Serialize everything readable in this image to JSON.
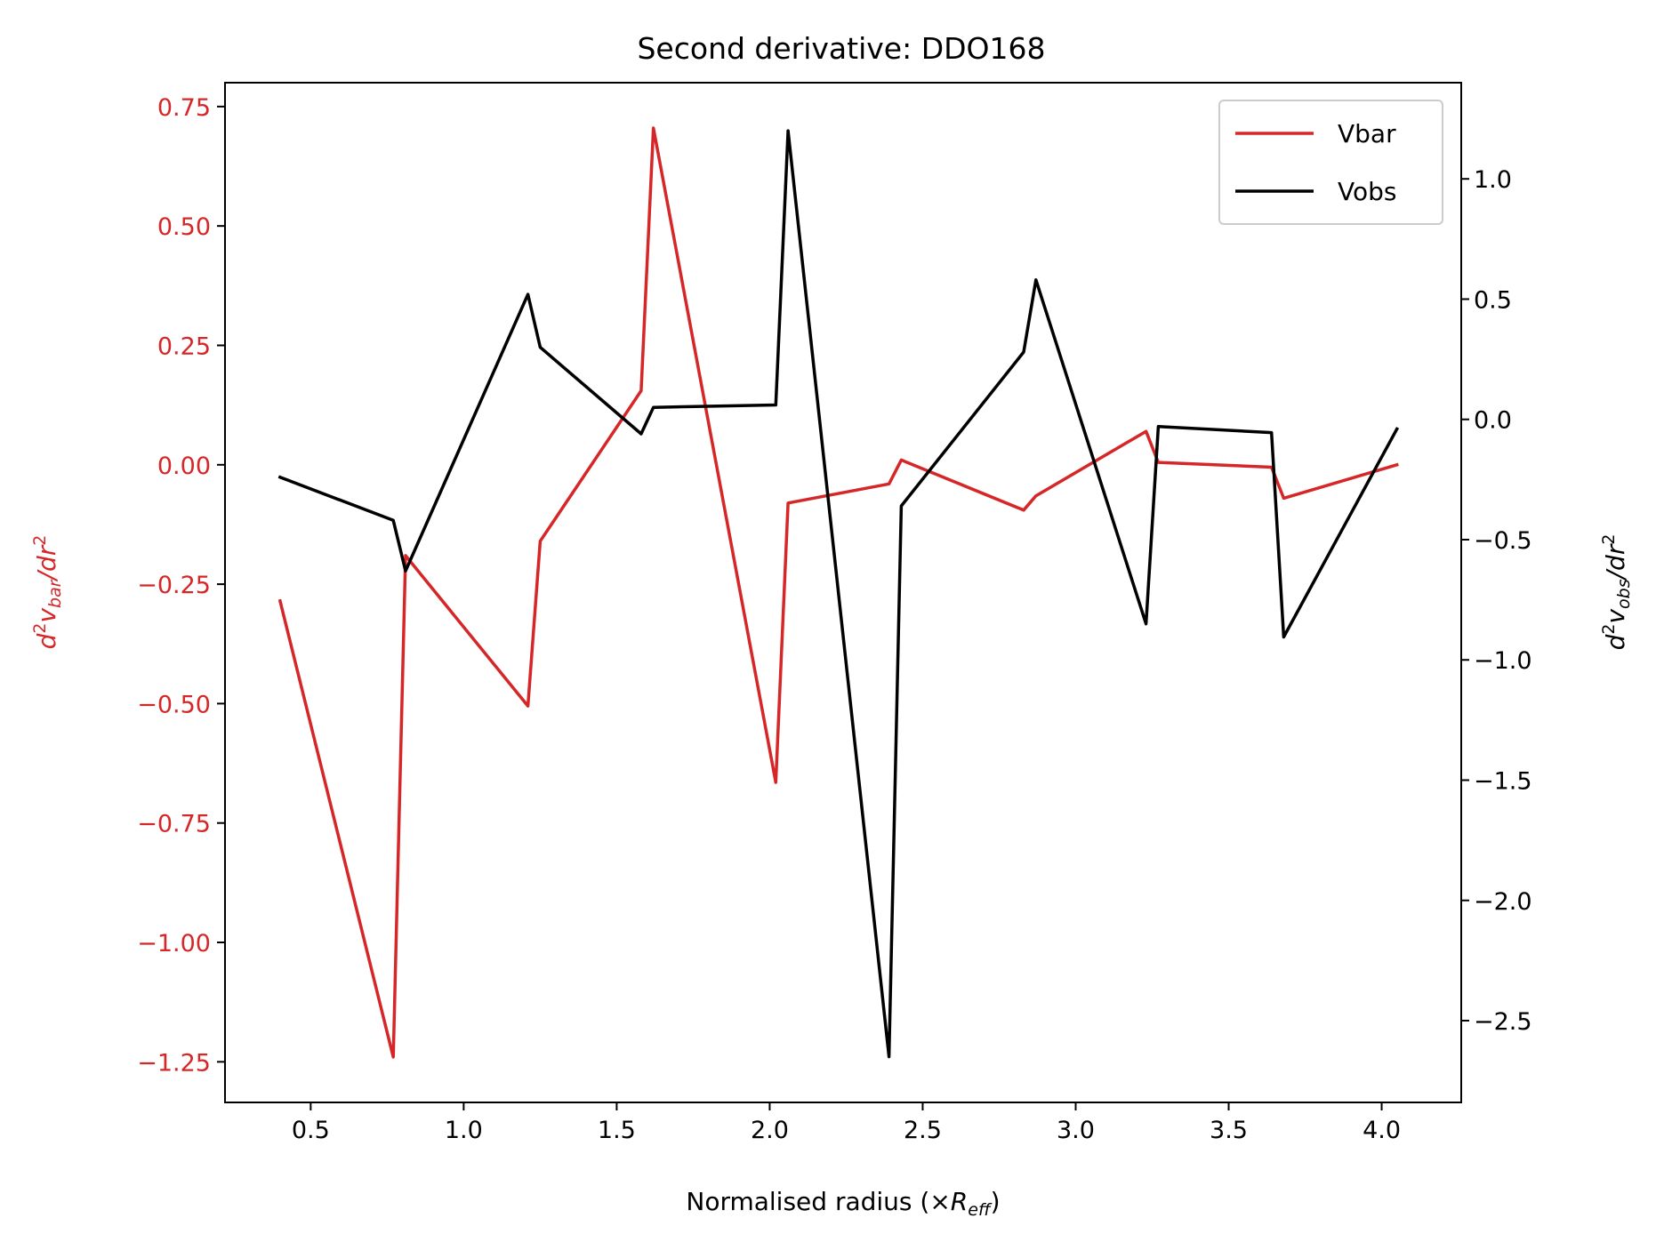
{
  "chart_data": {
    "type": "line",
    "title": "Second derivative: DDO168",
    "xlabel": {
      "text": "Normalised radius (×",
      "var": "R",
      "sub": "eff",
      "close": ")"
    },
    "ylabel_left": {
      "parts": [
        {
          "t": "d",
          "style": "italic"
        },
        {
          "t": "2",
          "style": "sup"
        },
        {
          "t": "v",
          "style": "italic"
        },
        {
          "t": "bar",
          "style": "sub"
        },
        {
          "t": "/dr",
          "style": "italic"
        },
        {
          "t": "2",
          "style": "sup"
        }
      ],
      "color": "#d62728"
    },
    "ylabel_right": {
      "parts": [
        {
          "t": "d",
          "style": "italic"
        },
        {
          "t": "2",
          "style": "sup"
        },
        {
          "t": "v",
          "style": "italic"
        },
        {
          "t": "obs",
          "style": "sub"
        },
        {
          "t": "/dr",
          "style": "italic"
        },
        {
          "t": "2",
          "style": "sup"
        }
      ],
      "color": "#000000"
    },
    "xlim": [
      0.22,
      4.26
    ],
    "ylim_left": [
      -1.335,
      0.8
    ],
    "ylim_right": [
      -2.84,
      1.4
    ],
    "xticks": [
      {
        "v": 0.5,
        "label": "0.5"
      },
      {
        "v": 1.0,
        "label": "1.0"
      },
      {
        "v": 1.5,
        "label": "1.5"
      },
      {
        "v": 2.0,
        "label": "2.0"
      },
      {
        "v": 2.5,
        "label": "2.5"
      },
      {
        "v": 3.0,
        "label": "3.0"
      },
      {
        "v": 3.5,
        "label": "3.5"
      },
      {
        "v": 4.0,
        "label": "4.0"
      }
    ],
    "yticks_left": [
      {
        "v": 0.75,
        "label": "0.75"
      },
      {
        "v": 0.5,
        "label": "0.50"
      },
      {
        "v": 0.25,
        "label": "0.25"
      },
      {
        "v": 0.0,
        "label": "0.00"
      },
      {
        "v": -0.25,
        "label": "−0.25"
      },
      {
        "v": -0.5,
        "label": "−0.50"
      },
      {
        "v": -0.75,
        "label": "−0.75"
      },
      {
        "v": -1.0,
        "label": "−1.00"
      },
      {
        "v": -1.25,
        "label": "−1.25"
      }
    ],
    "yticks_right": [
      {
        "v": 1.0,
        "label": "1.0"
      },
      {
        "v": 0.5,
        "label": "0.5"
      },
      {
        "v": 0.0,
        "label": "0.0"
      },
      {
        "v": -0.5,
        "label": "−0.5"
      },
      {
        "v": -1.0,
        "label": "−1.0"
      },
      {
        "v": -1.5,
        "label": "−1.5"
      },
      {
        "v": -2.0,
        "label": "−2.0"
      },
      {
        "v": -2.5,
        "label": "−2.5"
      }
    ],
    "grid": false,
    "legend": {
      "placement": "top-right",
      "entries": [
        "Vbar",
        "Vobs"
      ]
    },
    "series": [
      {
        "name": "Vbar",
        "axis": "left",
        "color": "#d62728",
        "x": [
          0.4,
          0.77,
          0.81,
          1.21,
          1.25,
          1.58,
          1.62,
          2.02,
          2.06,
          2.39,
          2.43,
          2.83,
          2.87,
          3.23,
          3.27,
          3.64,
          3.68,
          4.05
        ],
        "y": [
          -0.285,
          -1.24,
          -0.19,
          -0.505,
          -0.16,
          0.155,
          0.705,
          -0.665,
          -0.08,
          -0.04,
          0.01,
          -0.095,
          -0.065,
          0.07,
          0.005,
          -0.005,
          -0.07,
          0.0
        ]
      },
      {
        "name": "Vobs",
        "axis": "right",
        "color": "#000000",
        "x": [
          0.4,
          0.77,
          0.81,
          1.21,
          1.25,
          1.58,
          1.62,
          2.02,
          2.06,
          2.39,
          2.43,
          2.83,
          2.87,
          3.23,
          3.27,
          3.64,
          3.68,
          4.05
        ],
        "y": [
          -0.24,
          -0.42,
          -0.63,
          0.52,
          0.3,
          -0.06,
          0.05,
          0.06,
          1.2,
          -2.65,
          -0.36,
          0.28,
          0.58,
          -0.85,
          -0.03,
          -0.055,
          -0.905,
          -0.04
        ]
      }
    ]
  }
}
